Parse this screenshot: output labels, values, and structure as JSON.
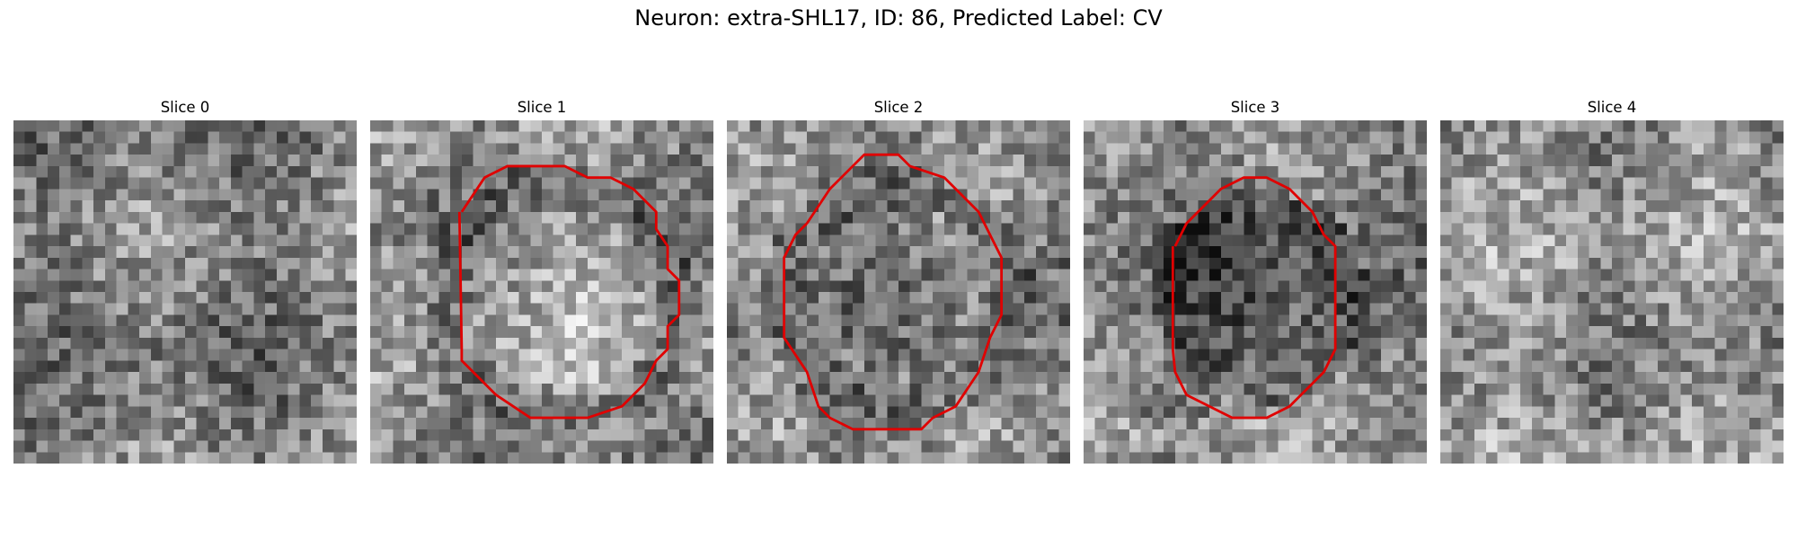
{
  "figure": {
    "title": "Neuron: extra-SHL17, ID: 86, Predicted Label: CV"
  },
  "contour_color": "#e00000",
  "panels": [
    {
      "title": "Slice 0",
      "has_contour": false,
      "mean_gray": 0.5,
      "seed": 11
    },
    {
      "title": "Slice 1",
      "has_contour": true,
      "mean_gray": 0.55,
      "seed": 23
    },
    {
      "title": "Slice 2",
      "has_contour": true,
      "mean_gray": 0.52,
      "seed": 37
    },
    {
      "title": "Slice 3",
      "has_contour": true,
      "mean_gray": 0.5,
      "seed": 41
    },
    {
      "title": "Slice 4",
      "has_contour": false,
      "mean_gray": 0.58,
      "seed": 53
    }
  ]
}
